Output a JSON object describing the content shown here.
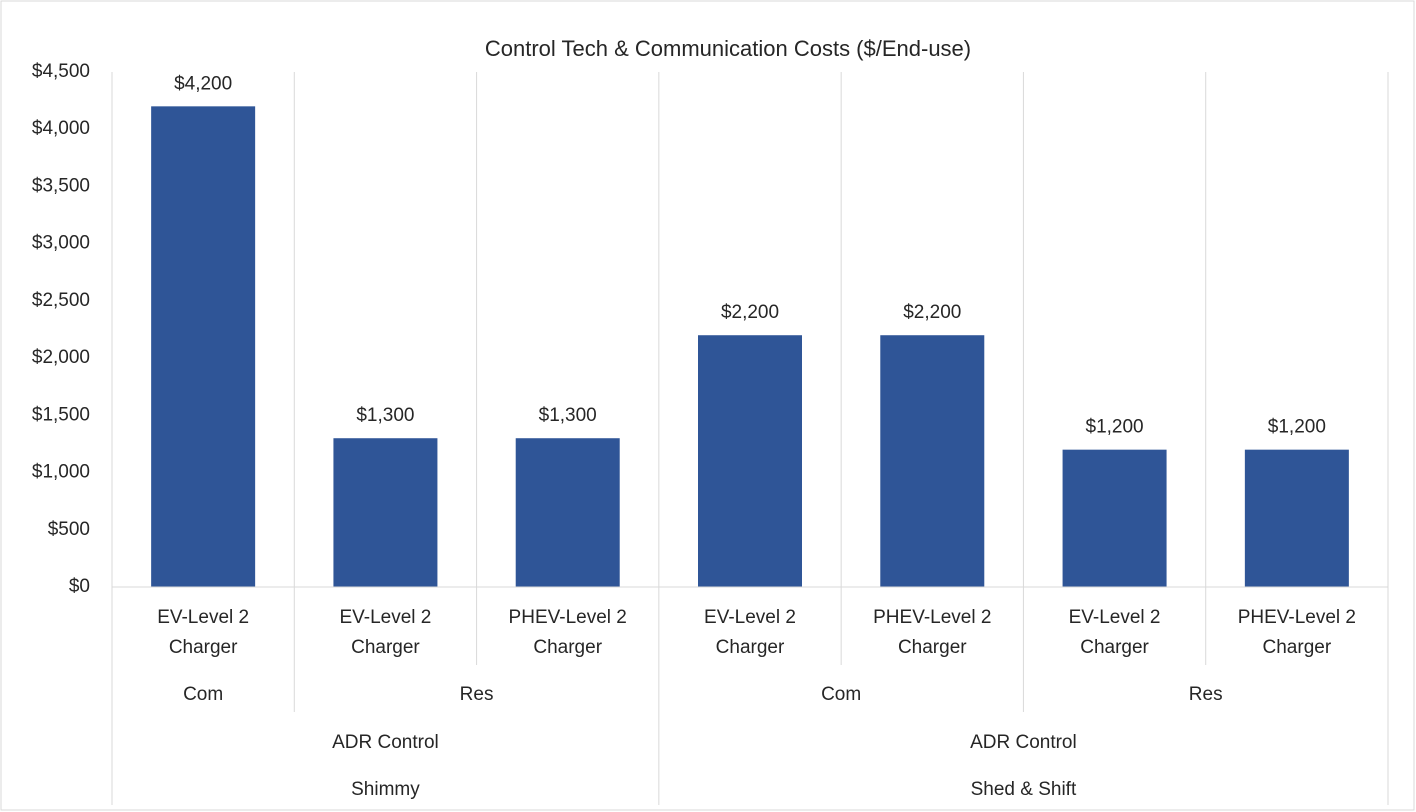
{
  "chart_data": {
    "type": "bar",
    "title": "Control Tech & Communication Costs ($/End-use)",
    "categories": [
      "EV-Level 2 Charger",
      "EV-Level 2 Charger",
      "PHEV-Level 2 Charger",
      "EV-Level 2 Charger",
      "PHEV-Level 2 Charger",
      "EV-Level 2 Charger",
      "PHEV-Level 2 Charger"
    ],
    "category_groups": [
      [
        {
          "label": "Com",
          "count": 1
        },
        {
          "label": "Res",
          "count": 2
        },
        {
          "label": "Com",
          "count": 2
        },
        {
          "label": "Res",
          "count": 2
        }
      ],
      [
        {
          "label": "ADR Control",
          "count": 3
        },
        {
          "label": "ADR Control",
          "count": 4
        }
      ],
      [
        {
          "label": "Shimmy",
          "count": 3
        },
        {
          "label": "Shed & Shift",
          "count": 4
        }
      ]
    ],
    "values": [
      4200,
      1300,
      1300,
      2200,
      2200,
      1200,
      1200
    ],
    "value_labels": [
      "$4,200",
      "$1,300",
      "$1,300",
      "$2,200",
      "$2,200",
      "$1,200",
      "$1,200"
    ],
    "color": "#2f5597",
    "ylim": [
      0,
      4500
    ],
    "yticks": [
      {
        "value": 0,
        "label": "$0"
      },
      {
        "value": 500,
        "label": "$500"
      },
      {
        "value": 1000,
        "label": "$1,000"
      },
      {
        "value": 1500,
        "label": "$1,500"
      },
      {
        "value": 2000,
        "label": "$2,000"
      },
      {
        "value": 2500,
        "label": "$2,500"
      },
      {
        "value": 3000,
        "label": "$3,000"
      },
      {
        "value": 3500,
        "label": "$3,500"
      },
      {
        "value": 4000,
        "label": "$4,000"
      },
      {
        "value": 4500,
        "label": "$4,500"
      }
    ],
    "grid": false
  }
}
